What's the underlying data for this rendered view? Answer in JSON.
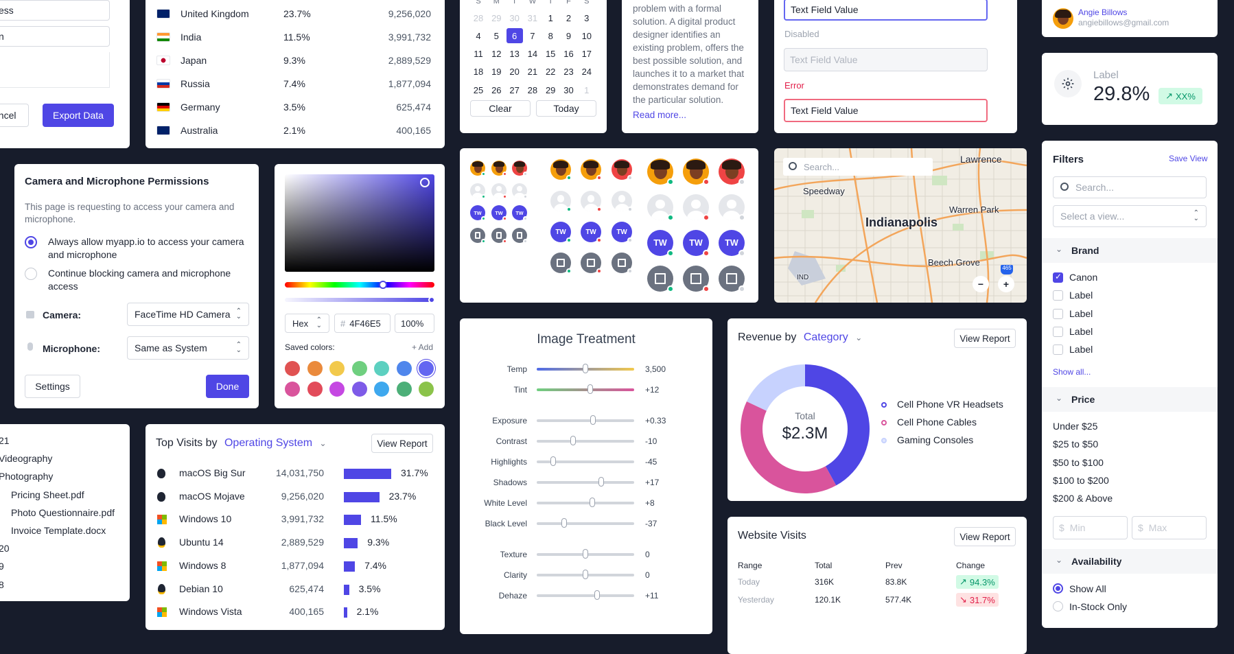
{
  "export_card": {
    "field1": "ess",
    "field2": "n",
    "cancel": "ancel",
    "export": "Export Data"
  },
  "countries": [
    {
      "name": "United Kingdom",
      "pct": "23.7%",
      "count": "9,256,020"
    },
    {
      "name": "India",
      "pct": "11.5%",
      "count": "3,991,732"
    },
    {
      "name": "Japan",
      "pct": "9.3%",
      "count": "2,889,529"
    },
    {
      "name": "Russia",
      "pct": "7.4%",
      "count": "1,877,094"
    },
    {
      "name": "Germany",
      "pct": "3.5%",
      "count": "625,474"
    },
    {
      "name": "Australia",
      "pct": "2.1%",
      "count": "400,165"
    }
  ],
  "calendar": {
    "weekdays": [
      "S",
      "M",
      "T",
      "W",
      "T",
      "F",
      "S"
    ],
    "rows": [
      [
        "28",
        "29",
        "30",
        "31",
        "1",
        "2",
        "3"
      ],
      [
        "4",
        "5",
        "6",
        "7",
        "8",
        "9",
        "10"
      ],
      [
        "11",
        "12",
        "13",
        "14",
        "15",
        "16",
        "17"
      ],
      [
        "18",
        "19",
        "20",
        "21",
        "22",
        "23",
        "24"
      ],
      [
        "25",
        "26",
        "27",
        "28",
        "29",
        "30",
        "1"
      ]
    ],
    "selected": "6",
    "clear": "Clear",
    "today": "Today"
  },
  "article": {
    "text": "problem with a formal solution. A digital product designer identifies an existing problem, offers the best possible solution, and launches it to a market that demonstrates demand for the particular solution.",
    "read_more": "Read more..."
  },
  "text_fields": {
    "value": "Text Field Value",
    "disabled_label": "Disabled",
    "disabled_value": "Text Field Value",
    "error_label": "Error",
    "error_value": "Text Field Value"
  },
  "profile": {
    "name": "Angie Billows",
    "email": "angiebillows@gmail.com"
  },
  "stat": {
    "label": "Label",
    "value": "29.8%",
    "badge": "XX%"
  },
  "permissions": {
    "title": "Camera and Microphone Permissions",
    "desc": "This page is requesting to access your camera and microphone.",
    "opt1": "Always allow myapp.io to access your camera and microphone",
    "opt2": "Continue blocking camera and microphone access",
    "camera_label": "Camera:",
    "camera_value": "FaceTime HD Camera",
    "mic_label": "Microphone:",
    "mic_value": "Same as System",
    "settings": "Settings",
    "done": "Done"
  },
  "color_picker": {
    "format": "Hex",
    "hex": "4F46E5",
    "hash": "#",
    "opacity": "100%",
    "saved_label": "Saved colors:",
    "add": "+ Add",
    "swatches_row1": [
      "#e05252",
      "#ea8a3c",
      "#f2c94c",
      "#6fcf7f",
      "#5cd0c0",
      "#4f86ec",
      "#6366f1"
    ],
    "swatches_row2": [
      "#d9549c",
      "#e24b5a",
      "#c548e2",
      "#7e5be8",
      "#3ea8ee",
      "#4caf78",
      "#8bc34a"
    ]
  },
  "avatars": {
    "initials": "TW"
  },
  "map": {
    "search": "Search...",
    "labels": [
      "Lawrence",
      "Speedway",
      "Warren Park",
      "Indianapolis",
      "Beech Grove",
      "IND"
    ],
    "highway": "465"
  },
  "filters": {
    "title": "Filters",
    "save_view": "Save View",
    "search": "Search...",
    "view_placeholder": "Select a view...",
    "brand": "Brand",
    "brands": [
      "Canon",
      "Label",
      "Label",
      "Label",
      "Label"
    ],
    "show_all": "Show all...",
    "price": "Price",
    "prices": [
      "Under $25",
      "$25 to $50",
      "$50 to $100",
      "$100 to $200",
      "$200 & Above"
    ],
    "min": "Min",
    "max": "Max",
    "currency": "$",
    "availability": "Availability",
    "avail": [
      "Show All",
      "In-Stock Only"
    ]
  },
  "files": {
    "items": [
      "21",
      "Videography",
      "Photography",
      "Pricing Sheet.pdf",
      "Photo Questionnaire.pdf",
      "Invoice Template.docx",
      "20",
      "9",
      "8"
    ]
  },
  "top_visits": {
    "title": "Top Visits by",
    "dimension": "Operating System",
    "view_report": "View Report",
    "rows": [
      {
        "os": "macOS Big Sur",
        "count": "14,031,750",
        "pct": "31.7%",
        "v": 31.7
      },
      {
        "os": "macOS Mojave",
        "count": "9,256,020",
        "pct": "23.7%",
        "v": 23.7
      },
      {
        "os": "Windows 10",
        "count": "3,991,732",
        "pct": "11.5%",
        "v": 11.5
      },
      {
        "os": "Ubuntu 14",
        "count": "2,889,529",
        "pct": "9.3%",
        "v": 9.3
      },
      {
        "os": "Windows 8",
        "count": "1,877,094",
        "pct": "7.4%",
        "v": 7.4
      },
      {
        "os": "Debian 10",
        "count": "625,474",
        "pct": "3.5%",
        "v": 3.5
      },
      {
        "os": "Windows Vista",
        "count": "400,165",
        "pct": "2.1%",
        "v": 2.1
      }
    ]
  },
  "image_treatment": {
    "title": "Image Treatment",
    "sliders": [
      {
        "label": "Temp",
        "value": "3,500",
        "pos": 0.5
      },
      {
        "label": "Tint",
        "value": "+12",
        "pos": 0.55
      },
      {
        "label": "Exposure",
        "value": "+0.33",
        "pos": 0.58
      },
      {
        "label": "Contrast",
        "value": "-10",
        "pos": 0.37
      },
      {
        "label": "Highlights",
        "value": "-45",
        "pos": 0.17
      },
      {
        "label": "Shadows",
        "value": "+17",
        "pos": 0.66
      },
      {
        "label": "White Level",
        "value": "+8",
        "pos": 0.57
      },
      {
        "label": "Black Level",
        "value": "-37",
        "pos": 0.28
      },
      {
        "label": "Texture",
        "value": "0",
        "pos": 0.5
      },
      {
        "label": "Clarity",
        "value": "0",
        "pos": 0.5
      },
      {
        "label": "Dehaze",
        "value": "+11",
        "pos": 0.62
      }
    ]
  },
  "revenue": {
    "title": "Revenue by",
    "dimension": "Category",
    "view_report": "View Report",
    "total_label": "Total",
    "total": "$2.3M"
  },
  "chart_data": {
    "type": "pie",
    "title": "Revenue by Category",
    "labels": [
      "Cell Phone VR Headsets",
      "Cell Phone Cables",
      "Gaming Consoles"
    ],
    "values": [
      42,
      40,
      18
    ],
    "colors": [
      "#4f46e5",
      "#d9549c",
      "#c7d2fe"
    ]
  },
  "website_visits": {
    "title": "Website Visits",
    "view_report": "View Report",
    "headers": [
      "Range",
      "Total",
      "Prev",
      "Change"
    ],
    "rows": [
      {
        "range": "Today",
        "total": "316K",
        "prev": "83.8K",
        "change": "94.3%",
        "up": true
      },
      {
        "range": "Yesterday",
        "total": "120.1K",
        "prev": "577.4K",
        "change": "31.7%",
        "up": false
      }
    ]
  }
}
